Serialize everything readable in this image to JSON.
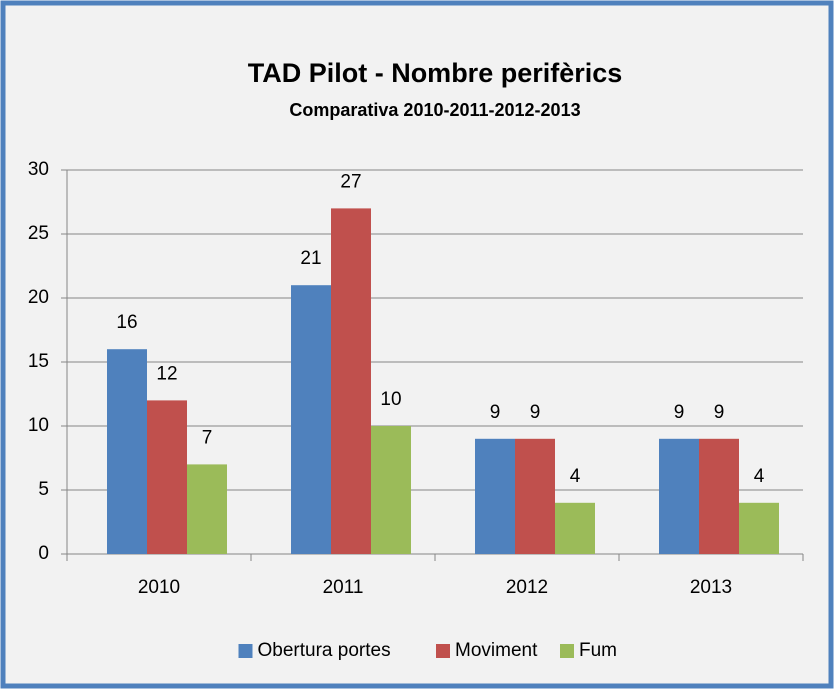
{
  "chart_data": {
    "type": "bar",
    "title": "TAD Pilot - Nombre perifèrics",
    "subtitle": "Comparativa 2010-2011-2012-2013",
    "categories": [
      "2010",
      "2011",
      "2012",
      "2013"
    ],
    "series": [
      {
        "name": "Obertura portes",
        "color": "#4f81bd",
        "values": [
          16,
          21,
          9,
          9
        ]
      },
      {
        "name": "Moviment",
        "color": "#c0504d",
        "values": [
          12,
          27,
          9,
          9
        ]
      },
      {
        "name": "Fum",
        "color": "#9bbb59",
        "values": [
          7,
          10,
          4,
          4
        ]
      }
    ],
    "ylim": [
      0,
      30
    ],
    "yticks": [
      0,
      5,
      10,
      15,
      20,
      25,
      30
    ],
    "grid": true,
    "legend": "bottom"
  }
}
